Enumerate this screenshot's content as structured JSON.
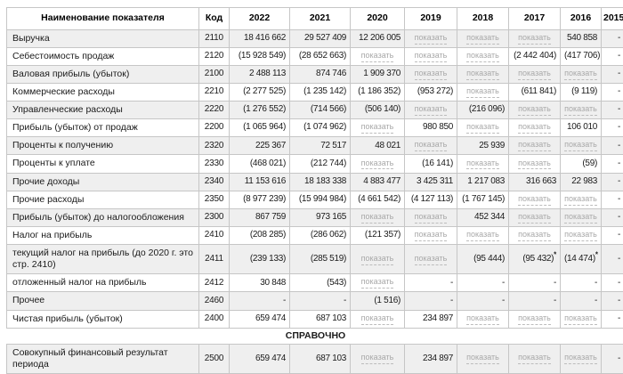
{
  "colors": {
    "row_stripe": "#efefef",
    "border": "#c6c6c6",
    "link_gray": "#a8a8a8",
    "text": "#1a1a1a"
  },
  "table": {
    "show_label": "показать",
    "columns": [
      "Наименование показателя",
      "Код",
      "2022",
      "2021",
      "2020",
      "2019",
      "2018",
      "2017",
      "2016",
      "2015"
    ],
    "rows": [
      {
        "name": "Выручка",
        "code": "2110",
        "values": [
          "18 416 662",
          "29 527 409",
          "12 206 005",
          "показать",
          "показать",
          "показать",
          "540 858",
          "-"
        ]
      },
      {
        "name": "Себестоимость продаж",
        "code": "2120",
        "values": [
          "(15 928 549)",
          "(28 652 663)",
          "показать",
          "показать",
          "показать",
          "(2 442 404)",
          "(417 706)",
          "-"
        ]
      },
      {
        "name": "Валовая прибыль (убыток)",
        "code": "2100",
        "values": [
          "2 488 113",
          "874 746",
          "1 909 370",
          "показать",
          "показать",
          "показать",
          "показать",
          "-"
        ]
      },
      {
        "name": "Коммерческие расходы",
        "code": "2210",
        "values": [
          "(2 277 525)",
          "(1 235 142)",
          "(1 186 352)",
          "(953 272)",
          "показать",
          "(611 841)",
          "(9 119)",
          "-"
        ]
      },
      {
        "name": "Управленческие расходы",
        "code": "2220",
        "values": [
          "(1 276 552)",
          "(714 566)",
          "(506 140)",
          "показать",
          "(216 096)",
          "показать",
          "показать",
          "-"
        ]
      },
      {
        "name": "Прибыль (убыток) от продаж",
        "code": "2200",
        "values": [
          "(1 065 964)",
          "(1 074 962)",
          "показать",
          "980 850",
          "показать",
          "показать",
          "106 010",
          "-"
        ]
      },
      {
        "name": "Проценты к получению",
        "code": "2320",
        "values": [
          "225 367",
          "72 517",
          "48 021",
          "показать",
          "25 939",
          "показать",
          "показать",
          "-"
        ]
      },
      {
        "name": "Проценты к уплате",
        "code": "2330",
        "values": [
          "(468 021)",
          "(212 744)",
          "показать",
          "(16 141)",
          "показать",
          "показать",
          "(59)",
          "-"
        ]
      },
      {
        "name": "Прочие доходы",
        "code": "2340",
        "values": [
          "11 153 616",
          "18 183 338",
          "4 883 477",
          "3 425 311",
          "1 217 083",
          "316 663",
          "22 983",
          "-"
        ]
      },
      {
        "name": "Прочие расходы",
        "code": "2350",
        "values": [
          "(8 977 239)",
          "(15 994 984)",
          "(4 661 542)",
          "(4 127 113)",
          "(1 767 145)",
          "показать",
          "показать",
          "-"
        ]
      },
      {
        "name": "Прибыль (убыток) до налогообложения",
        "code": "2300",
        "values": [
          "867 759",
          "973 165",
          "показать",
          "показать",
          "452 344",
          "показать",
          "показать",
          "-"
        ]
      },
      {
        "name": "Налог на прибыль",
        "code": "2410",
        "values": [
          "(208 285)",
          "(286 062)",
          "(121 357)",
          "показать",
          "показать",
          "показать",
          "показать",
          "-"
        ]
      },
      {
        "name": "текущий налог на прибыль (до 2020 г. это стр. 2410)",
        "code": "2411",
        "values": [
          "(239 133)",
          "(285 519)",
          "показать",
          "показать",
          "(95 444)",
          {
            "v": "(95 432)",
            "star": "*"
          },
          {
            "v": "(14 474)",
            "star": "*"
          },
          "-"
        ]
      },
      {
        "name": "отложенный налог на прибыль",
        "code": "2412",
        "values": [
          "30 848",
          "(543)",
          "показать",
          "-",
          "-",
          "-",
          "-",
          "-"
        ]
      },
      {
        "name": "Прочее",
        "code": "2460",
        "values": [
          "-",
          "-",
          "(1 516)",
          "-",
          "-",
          "-",
          "-",
          "-"
        ]
      },
      {
        "name": "Чистая прибыль (убыток)",
        "code": "2400",
        "values": [
          "659 474",
          "687 103",
          "показать",
          "234 897",
          "показать",
          "показать",
          "показать",
          "-"
        ]
      },
      {
        "section": "СПРАВОЧНО"
      },
      {
        "name": "Совокупный финансовый результат периода",
        "code": "2500",
        "values": [
          "659 474",
          "687 103",
          "показать",
          "234 897",
          "показать",
          "показать",
          "показать",
          "-"
        ]
      }
    ]
  }
}
